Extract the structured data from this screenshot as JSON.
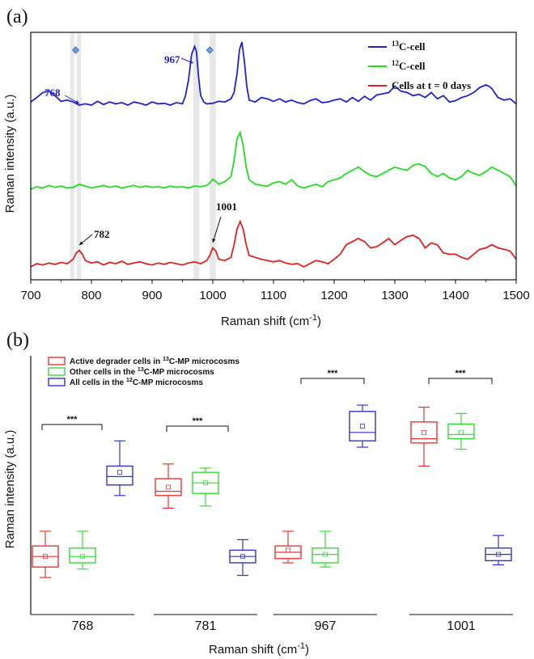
{
  "chart_data": [
    {
      "panel_label": "(a)",
      "type": "line",
      "xlabel": "Raman shift (cm",
      "xlabel_sup": "-1",
      "xlabel_close": ")",
      "ylabel": "Raman intensity (a.u.)",
      "xlim": [
        700,
        1500
      ],
      "xticks": [
        "700",
        "800",
        "900",
        "1000",
        "1100",
        "1200",
        "1300",
        "1400",
        "1500"
      ],
      "highlight_bands": [
        {
          "from": 765,
          "to": 772
        },
        {
          "from": 776,
          "to": 783
        },
        {
          "from": 968,
          "to": 978
        },
        {
          "from": 995,
          "to": 1005
        }
      ],
      "series": [
        {
          "legend_sup": "13",
          "legend_text": "C-cell",
          "color": "#2222cc",
          "offset": 2.0,
          "x": [
            700,
            710,
            720,
            730,
            740,
            750,
            760,
            770,
            780,
            790,
            800,
            810,
            820,
            830,
            840,
            850,
            860,
            870,
            880,
            890,
            900,
            910,
            920,
            930,
            940,
            950,
            955,
            960,
            965,
            970,
            973,
            976,
            980,
            985,
            990,
            1000,
            1010,
            1020,
            1030,
            1035,
            1040,
            1044,
            1048,
            1052,
            1056,
            1060,
            1070,
            1080,
            1090,
            1100,
            1110,
            1120,
            1130,
            1140,
            1150,
            1160,
            1170,
            1180,
            1190,
            1200,
            1210,
            1220,
            1230,
            1240,
            1250,
            1260,
            1270,
            1280,
            1290,
            1300,
            1310,
            1320,
            1330,
            1340,
            1350,
            1360,
            1370,
            1380,
            1390,
            1400,
            1410,
            1420,
            1430,
            1440,
            1450,
            1455,
            1460,
            1470,
            1480,
            1490,
            1500
          ],
          "y": [
            0.05,
            0.12,
            0.2,
            0.22,
            0.15,
            0.06,
            0.08,
            0.05,
            0.0,
            0.02,
            0.0,
            0.06,
            0.01,
            0.05,
            0.02,
            0.04,
            0.0,
            0.05,
            0.03,
            0.0,
            0.05,
            0.02,
            0.03,
            0.0,
            0.04,
            0.02,
            0.15,
            0.4,
            0.8,
            0.93,
            0.85,
            0.5,
            0.15,
            0.05,
            0.02,
            0.03,
            0.06,
            0.05,
            0.1,
            0.2,
            0.5,
            0.88,
            1.0,
            0.7,
            0.3,
            0.08,
            0.05,
            0.12,
            0.1,
            0.06,
            0.1,
            0.05,
            0.08,
            0.04,
            0.02,
            0.07,
            0.1,
            0.04,
            0.05,
            0.08,
            0.1,
            0.05,
            0.12,
            0.06,
            0.14,
            0.08,
            0.16,
            0.18,
            0.2,
            0.3,
            0.22,
            0.2,
            0.15,
            0.17,
            0.12,
            0.2,
            0.1,
            0.15,
            0.05,
            0.07,
            0.12,
            0.15,
            0.2,
            0.28,
            0.32,
            0.3,
            0.26,
            0.12,
            0.08,
            0.1,
            0.02
          ]
        },
        {
          "legend_sup": "12",
          "legend_text": "C-cell",
          "color": "#22dd22",
          "offset": 1.0,
          "x": [
            700,
            710,
            720,
            730,
            740,
            750,
            760,
            770,
            780,
            790,
            800,
            810,
            820,
            830,
            840,
            850,
            860,
            870,
            880,
            890,
            900,
            910,
            920,
            930,
            940,
            950,
            960,
            970,
            980,
            990,
            995,
            1000,
            1005,
            1010,
            1020,
            1030,
            1035,
            1040,
            1045,
            1050,
            1055,
            1060,
            1070,
            1080,
            1090,
            1100,
            1110,
            1120,
            1130,
            1140,
            1150,
            1160,
            1170,
            1180,
            1190,
            1200,
            1210,
            1220,
            1230,
            1240,
            1250,
            1260,
            1270,
            1280,
            1290,
            1300,
            1310,
            1320,
            1330,
            1340,
            1350,
            1360,
            1370,
            1380,
            1390,
            1400,
            1410,
            1420,
            1430,
            1440,
            1450,
            1460,
            1470,
            1480,
            1490,
            1500
          ],
          "y": [
            0.0,
            0.04,
            0.02,
            0.06,
            0.03,
            0.05,
            0.02,
            0.03,
            0.08,
            0.05,
            0.02,
            0.04,
            0.06,
            0.03,
            0.05,
            0.02,
            0.04,
            0.06,
            0.03,
            0.05,
            0.03,
            0.04,
            0.02,
            0.05,
            0.03,
            0.04,
            0.02,
            0.05,
            0.04,
            0.06,
            0.1,
            0.16,
            0.12,
            0.08,
            0.12,
            0.2,
            0.45,
            0.8,
            0.9,
            0.7,
            0.35,
            0.15,
            0.08,
            0.06,
            0.05,
            0.1,
            0.12,
            0.08,
            0.15,
            0.05,
            0.02,
            0.05,
            0.08,
            0.04,
            0.12,
            0.15,
            0.18,
            0.25,
            0.3,
            0.35,
            0.28,
            0.22,
            0.2,
            0.25,
            0.3,
            0.35,
            0.32,
            0.3,
            0.38,
            0.4,
            0.36,
            0.25,
            0.2,
            0.25,
            0.18,
            0.15,
            0.2,
            0.3,
            0.25,
            0.22,
            0.28,
            0.35,
            0.3,
            0.25,
            0.2,
            0.05
          ]
        },
        {
          "legend_sup": "",
          "legend_text": "Cells at t = 0 days",
          "color": "#dd2222",
          "offset": 0.0,
          "x": [
            700,
            710,
            720,
            730,
            740,
            750,
            760,
            770,
            775,
            780,
            785,
            790,
            800,
            810,
            820,
            830,
            840,
            850,
            860,
            870,
            880,
            890,
            900,
            910,
            920,
            930,
            940,
            950,
            960,
            970,
            980,
            990,
            995,
            1000,
            1005,
            1010,
            1020,
            1030,
            1035,
            1040,
            1045,
            1050,
            1055,
            1060,
            1070,
            1080,
            1090,
            1100,
            1110,
            1120,
            1130,
            1140,
            1150,
            1160,
            1170,
            1180,
            1190,
            1200,
            1210,
            1220,
            1230,
            1240,
            1250,
            1260,
            1270,
            1280,
            1290,
            1300,
            1310,
            1320,
            1330,
            1340,
            1350,
            1360,
            1370,
            1380,
            1390,
            1400,
            1410,
            1420,
            1430,
            1440,
            1450,
            1460,
            1470,
            1480,
            1490,
            1500
          ],
          "y": [
            0.0,
            0.05,
            0.03,
            0.06,
            0.04,
            0.07,
            0.05,
            0.12,
            0.22,
            0.26,
            0.2,
            0.1,
            0.06,
            0.08,
            0.03,
            0.07,
            0.05,
            0.09,
            0.04,
            0.06,
            0.08,
            0.05,
            0.03,
            0.06,
            0.04,
            0.07,
            0.05,
            0.03,
            0.06,
            0.08,
            0.05,
            0.1,
            0.18,
            0.3,
            0.25,
            0.12,
            0.1,
            0.15,
            0.35,
            0.6,
            0.72,
            0.6,
            0.35,
            0.18,
            0.15,
            0.12,
            0.1,
            0.08,
            0.1,
            0.06,
            0.04,
            0.05,
            0.0,
            0.05,
            0.1,
            0.08,
            0.05,
            0.12,
            0.2,
            0.35,
            0.4,
            0.45,
            0.4,
            0.3,
            0.32,
            0.38,
            0.45,
            0.35,
            0.42,
            0.48,
            0.5,
            0.45,
            0.3,
            0.38,
            0.35,
            0.22,
            0.2,
            0.2,
            0.15,
            0.12,
            0.2,
            0.28,
            0.3,
            0.35,
            0.3,
            0.28,
            0.25,
            0.12
          ]
        }
      ],
      "annotations": [
        {
          "text": "768",
          "color": "#2222cc",
          "series": 0
        },
        {
          "text": "967",
          "color": "#2222cc",
          "series": 0
        },
        {
          "text": "782",
          "color": "#111111",
          "series": 2
        },
        {
          "text": "1001",
          "color": "#111111",
          "series": 2
        }
      ]
    },
    {
      "panel_label": "(b)",
      "type": "box",
      "xlabel": "Raman shift (cm",
      "xlabel_sup": "-1",
      "xlabel_close": ")",
      "ylabel": "Raman intensity (a.u.)",
      "ylim": [
        0,
        1
      ],
      "categories": [
        "768",
        "781",
        "967",
        "1001"
      ],
      "legend": [
        {
          "pre": "Active degrader cells in ",
          "sup": "13",
          "post": "C-MP microcosms",
          "color": "#ee3333"
        },
        {
          "pre": "Other cells in the ",
          "sup": "13",
          "post": "C-MP microcosms",
          "color": "#33dd33"
        },
        {
          "pre": "All cells in the ",
          "sup": "12",
          "post": "C-MP microcosms",
          "color": "#3333cc"
        }
      ],
      "significance": "***",
      "groups": [
        {
          "category": "768",
          "boxes": [
            {
              "color": "#ee3333",
              "min": 0.08,
              "q1": 0.13,
              "median": 0.18,
              "q3": 0.23,
              "max": 0.3,
              "mean": 0.18
            },
            {
              "color": "#33dd33",
              "min": 0.12,
              "q1": 0.15,
              "median": 0.18,
              "q3": 0.22,
              "max": 0.3,
              "mean": 0.18
            },
            {
              "color": "#3333cc",
              "min": 0.47,
              "q1": 0.52,
              "median": 0.56,
              "q3": 0.61,
              "max": 0.73,
              "mean": 0.58
            }
          ]
        },
        {
          "category": "781",
          "boxes": [
            {
              "color": "#ee3333",
              "min": 0.41,
              "q1": 0.47,
              "median": 0.49,
              "q3": 0.55,
              "max": 0.62,
              "mean": 0.51
            },
            {
              "color": "#33dd33",
              "min": 0.42,
              "q1": 0.48,
              "median": 0.53,
              "q3": 0.58,
              "max": 0.6,
              "mean": 0.53
            },
            {
              "color": "#3333cc",
              "min": 0.09,
              "q1": 0.15,
              "median": 0.18,
              "q3": 0.21,
              "max": 0.26,
              "mean": 0.18
            }
          ]
        },
        {
          "category": "967",
          "boxes": [
            {
              "color": "#ee3333",
              "min": 0.15,
              "q1": 0.17,
              "median": 0.2,
              "q3": 0.23,
              "max": 0.3,
              "mean": 0.21
            },
            {
              "color": "#33dd33",
              "min": 0.13,
              "q1": 0.15,
              "median": 0.19,
              "q3": 0.22,
              "max": 0.3,
              "mean": 0.19
            },
            {
              "color": "#3333cc",
              "min": 0.7,
              "q1": 0.73,
              "median": 0.77,
              "q3": 0.87,
              "max": 0.9,
              "mean": 0.8
            }
          ]
        },
        {
          "category": "1001",
          "boxes": [
            {
              "color": "#ee3333",
              "min": 0.61,
              "q1": 0.72,
              "median": 0.74,
              "q3": 0.82,
              "max": 0.89,
              "mean": 0.77
            },
            {
              "color": "#33dd33",
              "min": 0.69,
              "q1": 0.74,
              "median": 0.76,
              "q3": 0.81,
              "max": 0.86,
              "mean": 0.77
            },
            {
              "color": "#3333cc",
              "min": 0.14,
              "q1": 0.16,
              "median": 0.19,
              "q3": 0.22,
              "max": 0.28,
              "mean": 0.19
            }
          ]
        }
      ]
    }
  ]
}
